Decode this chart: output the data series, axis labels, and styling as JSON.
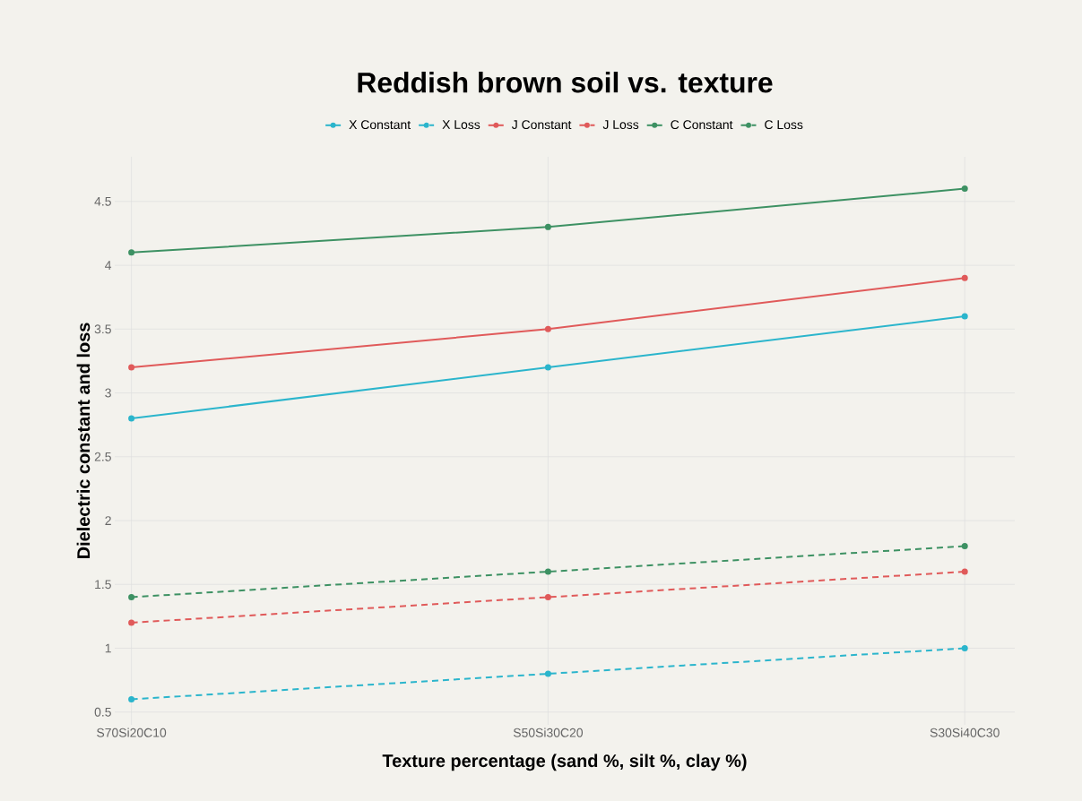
{
  "chart_data": {
    "type": "line",
    "title": "Reddish brown soil vs. texture",
    "xlabel": "Texture percentage (sand %, silt %, clay %)",
    "ylabel": "Dielectric constant and loss",
    "categories": [
      "S70Si20C10",
      "S50Si30C20",
      "S30Si40C30"
    ],
    "series": [
      {
        "name": "X Constant",
        "color": "#2bb5cc",
        "values": [
          2.8,
          3.2,
          3.6
        ],
        "line_style": "solid"
      },
      {
        "name": "X Loss",
        "color": "#2bb5cc",
        "values": [
          0.6,
          0.8,
          1.0
        ],
        "line_style": "dashed"
      },
      {
        "name": "J Constant",
        "color": "#e05a5a",
        "values": [
          3.2,
          3.5,
          3.9
        ],
        "line_style": "solid"
      },
      {
        "name": "J Loss",
        "color": "#e05a5a",
        "values": [
          1.2,
          1.4,
          1.6
        ],
        "line_style": "dashed"
      },
      {
        "name": "C Constant",
        "color": "#3d9163",
        "values": [
          4.1,
          4.3,
          4.6
        ],
        "line_style": "solid"
      },
      {
        "name": "C Loss",
        "color": "#3d9163",
        "values": [
          1.4,
          1.6,
          1.8
        ],
        "line_style": "dashed"
      }
    ],
    "ylim": [
      0.4,
      4.85
    ],
    "yticks": [
      0.5,
      1,
      1.5,
      2,
      2.5,
      3,
      3.5,
      4,
      4.5
    ],
    "grid": true,
    "legend": "top",
    "marker": "circle"
  }
}
